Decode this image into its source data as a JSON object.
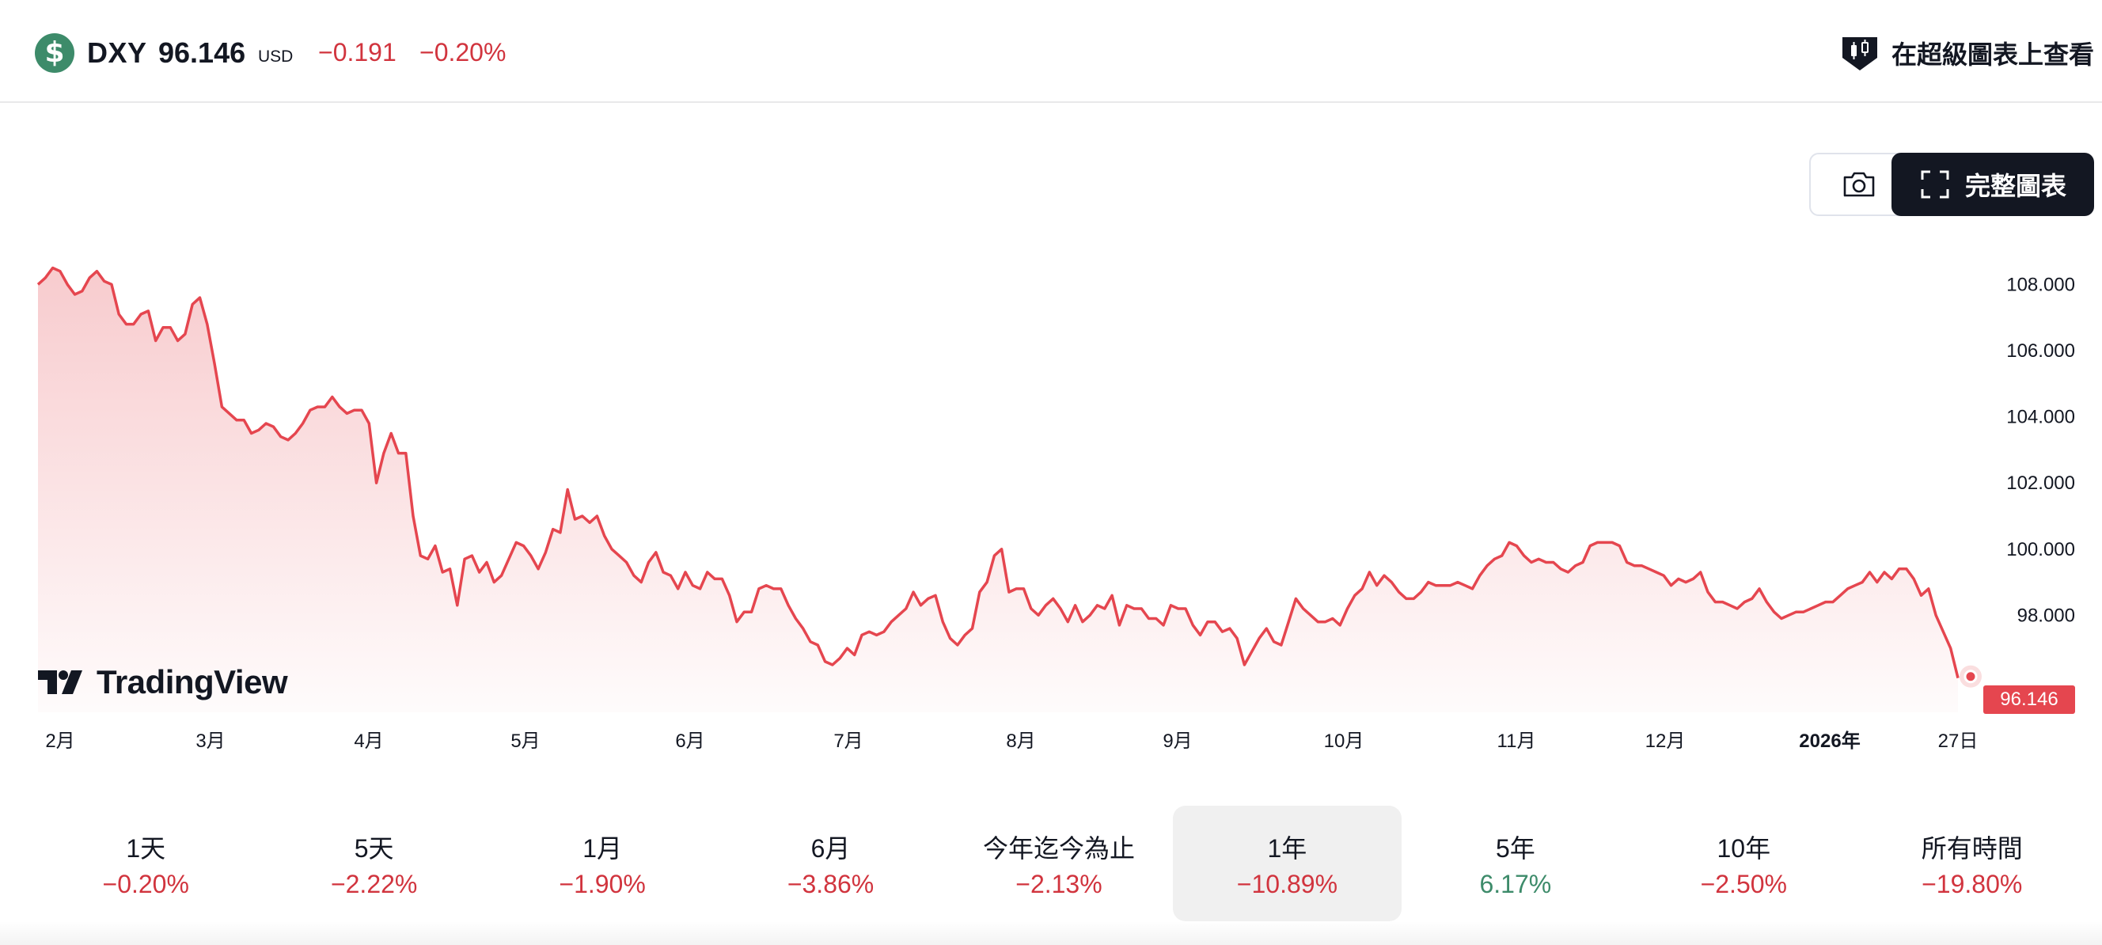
{
  "header": {
    "symbol_icon": "dollar-sign-icon",
    "symbol_glyph": "$",
    "symbol": "DXY",
    "price": "96.146",
    "currency": "USD",
    "change": "−0.191",
    "change_percent": "−0.20%",
    "supercharts_label": "在超級圖表上查看",
    "supercharts_icon": "candlestick-badge-icon"
  },
  "toolbar": {
    "camera_icon": "camera-icon",
    "fullscreen_icon": "fullscreen-icon",
    "full_chart_label": "完整圖表"
  },
  "logo": {
    "text": "TradingView"
  },
  "colors": {
    "line": "#e5464f",
    "negative": "#d1343e",
    "positive": "#3d8b6a",
    "accent_dark": "#131722"
  },
  "chart_data": {
    "type": "area",
    "series": [
      {
        "values": [
          108.0,
          108.2,
          108.5,
          108.4,
          108.0,
          107.7,
          107.8,
          108.2,
          108.4,
          108.1,
          108.0,
          107.1,
          106.8,
          106.8,
          107.1,
          107.2,
          106.3,
          106.7,
          106.7,
          106.3,
          106.5,
          107.4,
          107.6,
          106.8,
          105.6,
          104.3,
          104.1,
          103.9,
          103.9,
          103.5,
          103.6,
          103.8,
          103.7,
          103.4,
          103.3,
          103.5,
          103.8,
          104.2,
          104.3,
          104.3,
          104.6,
          104.3,
          104.1,
          104.2,
          104.2,
          103.8,
          102.0,
          102.9,
          103.5,
          102.9,
          102.9,
          101.0,
          99.8,
          99.7,
          100.1,
          99.3,
          99.4,
          98.3,
          99.7,
          99.8,
          99.3,
          99.6,
          99.0,
          99.2,
          99.7,
          100.2,
          100.1,
          99.8,
          99.4,
          99.9,
          100.6,
          100.5,
          101.8,
          100.9,
          101.0,
          100.8,
          101.0,
          100.4,
          100.0,
          99.8,
          99.6,
          99.2,
          99.0,
          99.6,
          99.9,
          99.3,
          99.2,
          98.8,
          99.3,
          98.9,
          98.8,
          99.3,
          99.1,
          99.1,
          98.6,
          97.8,
          98.1,
          98.1,
          98.8,
          98.9,
          98.8,
          98.8,
          98.3,
          97.9,
          97.6,
          97.2,
          97.1,
          96.6,
          96.5,
          96.7,
          97.0,
          96.8,
          97.4,
          97.5,
          97.4,
          97.5,
          97.8,
          98.0,
          98.2,
          98.7,
          98.3,
          98.5,
          98.6,
          97.8,
          97.3,
          97.1,
          97.4,
          97.6,
          98.7,
          99.0,
          99.8,
          100.0,
          98.7,
          98.8,
          98.8,
          98.2,
          98.0,
          98.3,
          98.5,
          98.2,
          97.8,
          98.3,
          97.8,
          98.0,
          98.3,
          98.2,
          98.6,
          97.7,
          98.3,
          98.2,
          98.2,
          97.9,
          97.9,
          97.7,
          98.3,
          98.2,
          98.2,
          97.7,
          97.4,
          97.8,
          97.8,
          97.5,
          97.6,
          97.3,
          96.5,
          96.9,
          97.3,
          97.6,
          97.2,
          97.1,
          97.8,
          98.5,
          98.2,
          98.0,
          97.8,
          97.8,
          97.9,
          97.7,
          98.2,
          98.6,
          98.8,
          99.3,
          98.9,
          99.2,
          99.0,
          98.7,
          98.5,
          98.5,
          98.7,
          99.0,
          98.9,
          98.9,
          98.9,
          99.0,
          98.9,
          98.8,
          99.2,
          99.5,
          99.7,
          99.8,
          100.2,
          100.1,
          99.8,
          99.6,
          99.7,
          99.6,
          99.6,
          99.4,
          99.3,
          99.5,
          99.6,
          100.1,
          100.2,
          100.2,
          100.2,
          100.1,
          99.6,
          99.5,
          99.5,
          99.4,
          99.3,
          99.2,
          98.9,
          99.1,
          99.0,
          99.1,
          99.3,
          98.7,
          98.4,
          98.4,
          98.3,
          98.2,
          98.4,
          98.5,
          98.8,
          98.4,
          98.1,
          97.9,
          98.0,
          98.1,
          98.1,
          98.2,
          98.3,
          98.4,
          98.4,
          98.6,
          98.8,
          98.9,
          99.0,
          99.3,
          99.0,
          99.3,
          99.1,
          99.4,
          99.4,
          99.1,
          98.6,
          98.8,
          98.0,
          97.5,
          97.0,
          96.1
        ]
      }
    ],
    "last_value": "96.146",
    "ylim": [
      95.4,
      108.8
    ],
    "y_ticks": [
      "108.000",
      "106.000",
      "104.000",
      "102.000",
      "100.000",
      "98.000"
    ],
    "x_ticks": [
      "2月",
      "3月",
      "4月",
      "5月",
      "6月",
      "7月",
      "8月",
      "9月",
      "10月",
      "11月",
      "12月",
      "2026年",
      "27日"
    ],
    "grid": false
  },
  "periods": [
    {
      "label": "1天",
      "value": "−0.20%",
      "sign": "neg"
    },
    {
      "label": "5天",
      "value": "−2.22%",
      "sign": "neg"
    },
    {
      "label": "1月",
      "value": "−1.90%",
      "sign": "neg"
    },
    {
      "label": "6月",
      "value": "−3.86%",
      "sign": "neg"
    },
    {
      "label": "今年迄今為止",
      "value": "−2.13%",
      "sign": "neg"
    },
    {
      "label": "1年",
      "value": "−10.89%",
      "sign": "neg",
      "active": true
    },
    {
      "label": "5年",
      "value": "6.17%",
      "sign": "pos"
    },
    {
      "label": "10年",
      "value": "−2.50%",
      "sign": "neg"
    },
    {
      "label": "所有時間",
      "value": "−19.80%",
      "sign": "neg"
    }
  ]
}
